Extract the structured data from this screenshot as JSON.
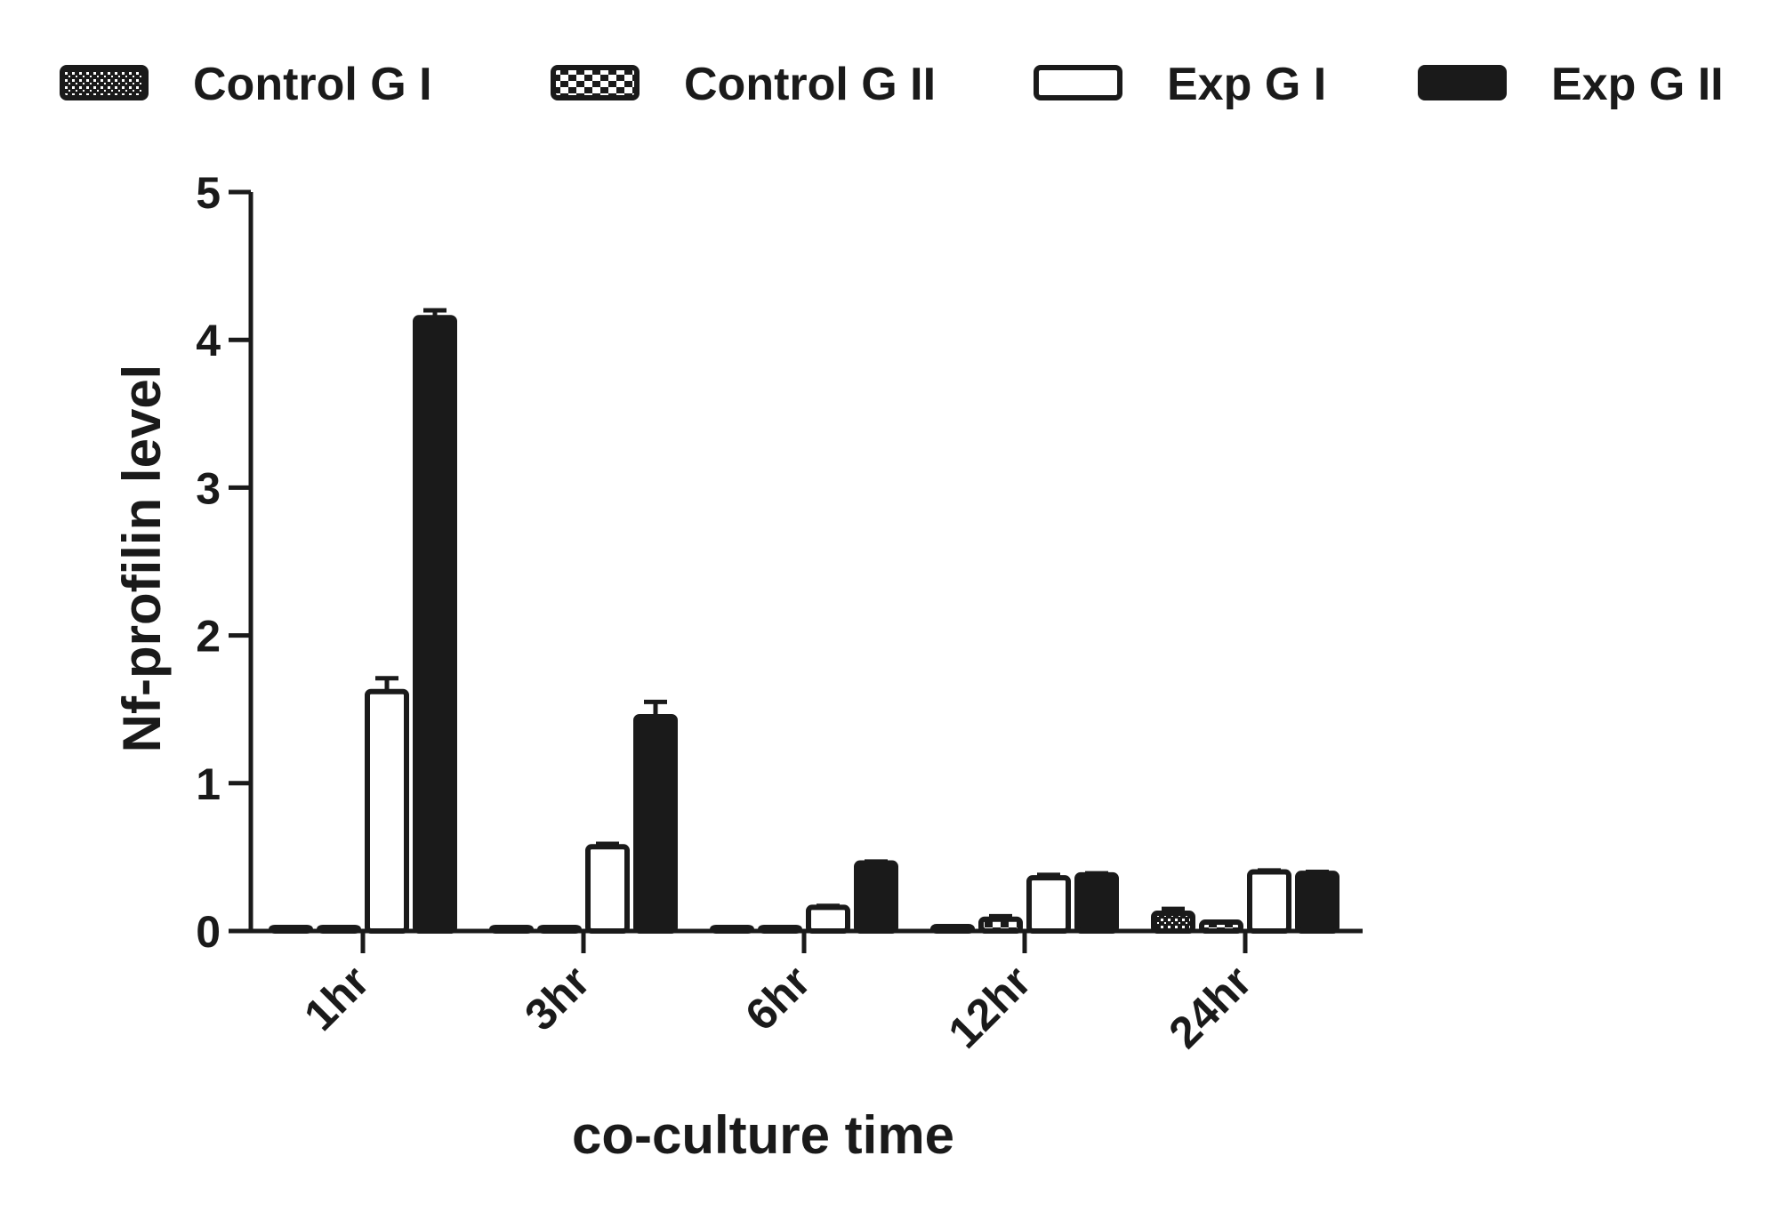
{
  "chart_data": {
    "type": "bar",
    "title": "",
    "xlabel": "co-culture time",
    "ylabel": "Nf-profilin level",
    "ylim": [
      0,
      5
    ],
    "yticks": [
      0,
      1,
      2,
      3,
      4,
      5
    ],
    "grid": false,
    "legend_position": "top",
    "categories": [
      "1hr",
      "3hr",
      "6hr",
      "12hr",
      "24hr"
    ],
    "series": [
      {
        "name": "Control G I",
        "values": [
          0.01,
          0.01,
          0.01,
          0.03,
          0.12
        ],
        "errors": [
          0.0,
          0.0,
          0.0,
          0.0,
          0.03
        ],
        "fill": "dots"
      },
      {
        "name": "Control G II",
        "values": [
          0.01,
          0.01,
          0.01,
          0.08,
          0.06
        ],
        "errors": [
          0.0,
          0.0,
          0.0,
          0.02,
          0.0
        ],
        "fill": "checker"
      },
      {
        "name": "Exp G I",
        "values": [
          1.62,
          0.57,
          0.16,
          0.36,
          0.4
        ],
        "errors": [
          0.09,
          0.02,
          0.01,
          0.02,
          0.01
        ],
        "fill": "white"
      },
      {
        "name": "Exp G II",
        "values": [
          4.15,
          1.45,
          0.46,
          0.38,
          0.39
        ],
        "errors": [
          0.05,
          0.1,
          0.01,
          0.01,
          0.01
        ],
        "fill": "black"
      }
    ]
  },
  "colors": {
    "ink": "#1a1a1a",
    "background": "#ffffff"
  }
}
